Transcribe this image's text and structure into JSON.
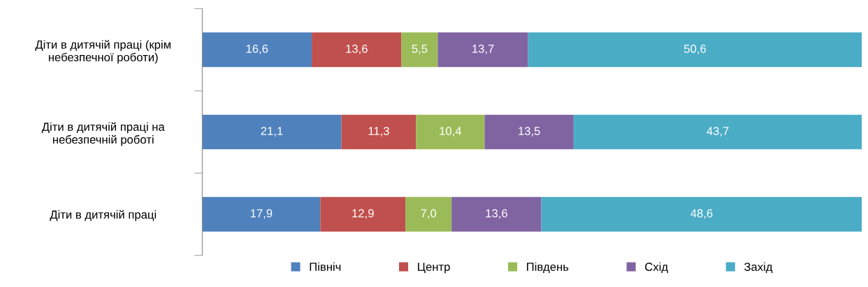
{
  "chart_data": {
    "type": "bar",
    "orientation": "horizontal",
    "stacked": true,
    "legend": "bottom",
    "grid": false,
    "categories": [
      "Діти в дитячій праці (крім\nнебезпечної роботи)",
      "Діти в дитячій праці на\nнебезпечній роботі",
      "Діти в дитячій праці"
    ],
    "series": [
      {
        "name": "Північ",
        "color": "#4f81bd",
        "values": [
          16.6,
          21.1,
          17.9
        ],
        "value_labels": [
          "16,6",
          "21,1",
          "17,9"
        ]
      },
      {
        "name": "Центр",
        "color": "#c0504d",
        "values": [
          13.6,
          11.3,
          12.9
        ],
        "value_labels": [
          "13,6",
          "11,3",
          "12,9"
        ]
      },
      {
        "name": "Південь",
        "color": "#9bbb59",
        "values": [
          5.5,
          10.4,
          7.0
        ],
        "value_labels": [
          "5,5",
          "10,4",
          "7,0"
        ]
      },
      {
        "name": "Схід",
        "color": "#8064a2",
        "values": [
          13.7,
          13.5,
          13.6
        ],
        "value_labels": [
          "13,7",
          "13,5",
          "13,6"
        ]
      },
      {
        "name": "Захід",
        "color": "#4bacc6",
        "values": [
          50.6,
          43.7,
          48.6
        ],
        "value_labels": [
          "50,6",
          "43,7",
          "48,6"
        ]
      }
    ]
  }
}
